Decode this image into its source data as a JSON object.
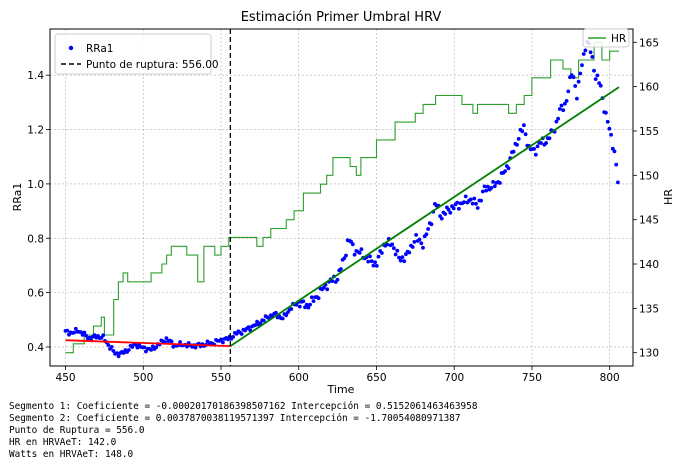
{
  "chart_data": {
    "type": "line",
    "title": "Estimación Primer Umbral HRV",
    "xlabel": "Time",
    "ylabel": "RRa1",
    "y2label": "HR",
    "xlim": [
      440,
      815
    ],
    "ylim": [
      0.33,
      1.57
    ],
    "y2lim": [
      128.5,
      166.5
    ],
    "xticks": [
      450,
      500,
      550,
      600,
      650,
      700,
      750,
      800
    ],
    "yticks": [
      0.4,
      0.6,
      0.8,
      1.0,
      1.2,
      1.4
    ],
    "y2ticks": [
      130,
      135,
      140,
      145,
      150,
      155,
      160,
      165
    ],
    "grid": true,
    "legend_left": {
      "placement": "top-left",
      "entries": [
        "RRa1",
        "Punto de ruptura: 556.00"
      ]
    },
    "legend_right": {
      "placement": "top-right",
      "entries": [
        "HR"
      ]
    },
    "breakpoint": {
      "x": 556.0,
      "label": "Punto de ruptura: 556.00"
    },
    "series": [
      {
        "name": "RRa1",
        "kind": "scatter",
        "color": "#0000ff",
        "axis": "left",
        "anchors": [
          [
            450,
            0.455
          ],
          [
            455,
            0.452
          ],
          [
            458,
            0.462
          ],
          [
            462,
            0.445
          ],
          [
            466,
            0.43
          ],
          [
            470,
            0.44
          ],
          [
            474,
            0.435
          ],
          [
            478,
            0.405
          ],
          [
            482,
            0.375
          ],
          [
            486,
            0.375
          ],
          [
            490,
            0.39
          ],
          [
            495,
            0.41
          ],
          [
            500,
            0.395
          ],
          [
            505,
            0.39
          ],
          [
            510,
            0.41
          ],
          [
            515,
            0.43
          ],
          [
            520,
            0.405
          ],
          [
            525,
            0.41
          ],
          [
            530,
            0.405
          ],
          [
            535,
            0.405
          ],
          [
            540,
            0.41
          ],
          [
            545,
            0.415
          ],
          [
            550,
            0.425
          ],
          [
            555,
            0.43
          ],
          [
            560,
            0.45
          ],
          [
            565,
            0.46
          ],
          [
            570,
            0.475
          ],
          [
            575,
            0.49
          ],
          [
            580,
            0.51
          ],
          [
            585,
            0.52
          ],
          [
            590,
            0.505
          ],
          [
            595,
            0.545
          ],
          [
            600,
            0.565
          ],
          [
            605,
            0.55
          ],
          [
            610,
            0.575
          ],
          [
            615,
            0.61
          ],
          [
            620,
            0.64
          ],
          [
            625,
            0.655
          ],
          [
            630,
            0.74
          ],
          [
            632,
            0.8
          ],
          [
            636,
            0.755
          ],
          [
            640,
            0.745
          ],
          [
            645,
            0.72
          ],
          [
            650,
            0.705
          ],
          [
            655,
            0.78
          ],
          [
            660,
            0.78
          ],
          [
            665,
            0.72
          ],
          [
            670,
            0.74
          ],
          [
            675,
            0.8
          ],
          [
            680,
            0.78
          ],
          [
            685,
            0.86
          ],
          [
            688,
            0.93
          ],
          [
            692,
            0.88
          ],
          [
            696,
            0.905
          ],
          [
            700,
            0.915
          ],
          [
            705,
            0.93
          ],
          [
            710,
            0.945
          ],
          [
            715,
            0.92
          ],
          [
            720,
            0.985
          ],
          [
            725,
            0.99
          ],
          [
            730,
            1.02
          ],
          [
            735,
            1.075
          ],
          [
            738,
            1.12
          ],
          [
            742,
            1.18
          ],
          [
            745,
            1.21
          ],
          [
            748,
            1.13
          ],
          [
            752,
            1.12
          ],
          [
            755,
            1.15
          ],
          [
            760,
            1.16
          ],
          [
            765,
            1.21
          ],
          [
            768,
            1.27
          ],
          [
            772,
            1.3
          ],
          [
            776,
            1.42
          ],
          [
            779,
            1.32
          ],
          [
            782,
            1.44
          ],
          [
            785,
            1.52
          ],
          [
            788,
            1.49
          ],
          [
            791,
            1.39
          ],
          [
            794,
            1.37
          ],
          [
            797,
            1.26
          ],
          [
            800,
            1.2
          ],
          [
            803,
            1.12
          ],
          [
            806,
            0.975
          ]
        ]
      },
      {
        "name": "HR",
        "kind": "step",
        "color": "#2ca02c",
        "axis": "right",
        "points": [
          [
            450,
            130
          ],
          [
            455,
            130
          ],
          [
            455,
            131
          ],
          [
            462,
            131
          ],
          [
            462,
            132
          ],
          [
            468,
            132
          ],
          [
            468,
            133
          ],
          [
            473,
            133
          ],
          [
            473,
            134
          ],
          [
            475,
            134
          ],
          [
            475,
            132
          ],
          [
            481,
            132
          ],
          [
            481,
            136
          ],
          [
            484,
            136
          ],
          [
            484,
            138
          ],
          [
            487,
            138
          ],
          [
            487,
            139
          ],
          [
            490,
            139
          ],
          [
            490,
            138
          ],
          [
            505,
            138
          ],
          [
            505,
            139
          ],
          [
            512,
            139
          ],
          [
            512,
            140
          ],
          [
            515,
            140
          ],
          [
            515,
            141
          ],
          [
            518,
            141
          ],
          [
            518,
            142
          ],
          [
            528,
            142
          ],
          [
            528,
            141
          ],
          [
            535,
            141
          ],
          [
            535,
            138
          ],
          [
            539,
            138
          ],
          [
            539,
            142
          ],
          [
            546,
            142
          ],
          [
            546,
            141
          ],
          [
            550,
            141
          ],
          [
            550,
            142
          ],
          [
            555,
            142
          ],
          [
            555,
            143
          ],
          [
            573,
            143
          ],
          [
            573,
            142
          ],
          [
            577,
            142
          ],
          [
            577,
            143
          ],
          [
            582,
            143
          ],
          [
            582,
            144
          ],
          [
            592,
            144
          ],
          [
            592,
            145
          ],
          [
            597,
            145
          ],
          [
            597,
            146
          ],
          [
            603,
            146
          ],
          [
            603,
            148
          ],
          [
            614,
            148
          ],
          [
            614,
            149
          ],
          [
            618,
            149
          ],
          [
            618,
            150
          ],
          [
            622,
            150
          ],
          [
            622,
            152
          ],
          [
            633,
            152
          ],
          [
            633,
            151
          ],
          [
            637,
            151
          ],
          [
            637,
            150
          ],
          [
            640,
            150
          ],
          [
            640,
            152
          ],
          [
            650,
            152
          ],
          [
            650,
            154
          ],
          [
            662,
            154
          ],
          [
            662,
            156
          ],
          [
            675,
            156
          ],
          [
            675,
            157
          ],
          [
            680,
            157
          ],
          [
            680,
            158
          ],
          [
            688,
            158
          ],
          [
            688,
            159
          ],
          [
            705,
            159
          ],
          [
            705,
            158
          ],
          [
            712,
            158
          ],
          [
            712,
            157
          ],
          [
            715,
            157
          ],
          [
            715,
            158
          ],
          [
            735,
            158
          ],
          [
            735,
            157
          ],
          [
            740,
            157
          ],
          [
            740,
            158
          ],
          [
            745,
            158
          ],
          [
            745,
            159
          ],
          [
            750,
            159
          ],
          [
            750,
            161
          ],
          [
            762,
            161
          ],
          [
            762,
            163
          ],
          [
            770,
            163
          ],
          [
            770,
            162
          ],
          [
            775,
            162
          ],
          [
            775,
            161
          ],
          [
            780,
            161
          ],
          [
            780,
            163
          ],
          [
            790,
            163
          ],
          [
            790,
            165
          ],
          [
            795,
            165
          ],
          [
            795,
            163
          ],
          [
            800,
            163
          ],
          [
            800,
            164
          ],
          [
            806,
            164
          ]
        ]
      },
      {
        "name": "Segmento 1 (fit)",
        "kind": "line",
        "color": "#ff0000",
        "axis": "left",
        "points": [
          [
            450,
            0.425
          ],
          [
            556,
            0.403
          ]
        ]
      },
      {
        "name": "Segmento 2 (fit)",
        "kind": "line",
        "color": "#008000",
        "axis": "left",
        "points": [
          [
            556,
            0.403
          ],
          [
            806,
            1.356
          ]
        ]
      }
    ]
  },
  "stats": {
    "line1": "Segmento 1: Coeficiente = -0.00020170186398507162 Intercepción = 0.5152061463463958",
    "line2": "Segmento 2: Coeficiente = 0.0037870038119571397 Intercepción = -1.70054080971387",
    "line3": "Punto de Ruptura = 556.0",
    "line4": "HR en HRVAeT: 142.0",
    "line5": "Watts en HRVAeT: 148.0"
  }
}
